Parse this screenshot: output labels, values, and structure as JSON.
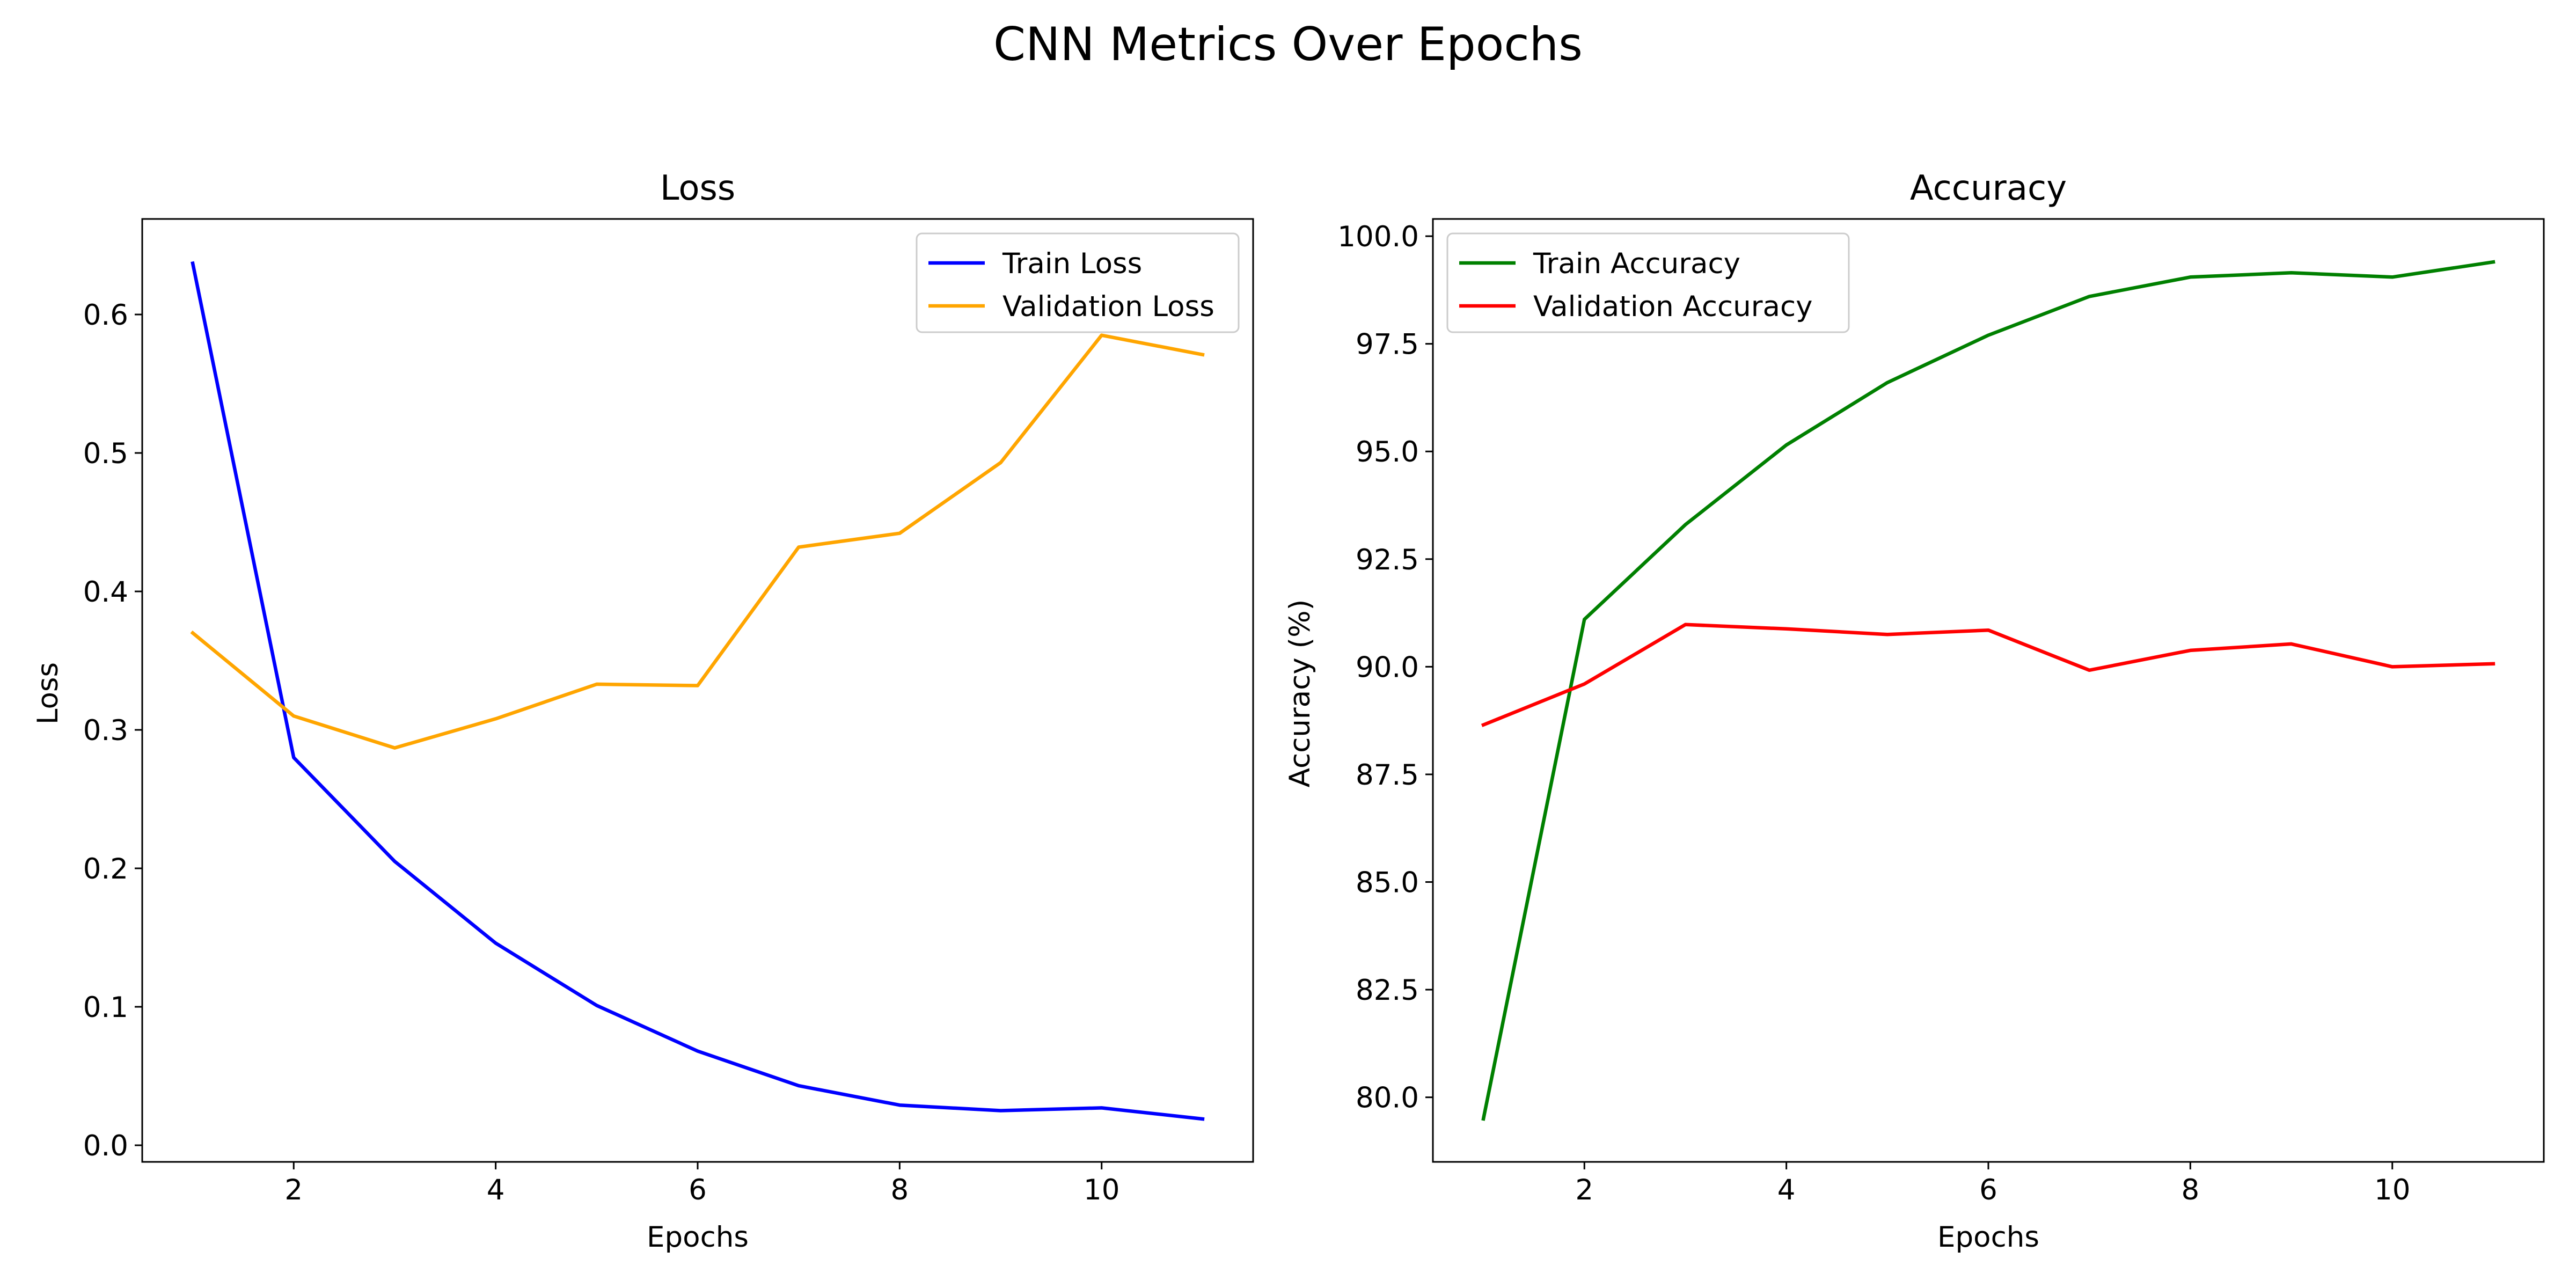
{
  "figure": {
    "title": "CNN Metrics Over Epochs"
  },
  "chart_data": [
    {
      "type": "line",
      "title": "Loss",
      "xlabel": "Epochs",
      "ylabel": "Loss",
      "x": [
        1,
        2,
        3,
        4,
        5,
        6,
        7,
        8,
        9,
        10,
        11
      ],
      "xlim": [
        0.5,
        11.5
      ],
      "ylim": [
        -0.012,
        0.669
      ],
      "xticks": [
        2,
        4,
        6,
        8,
        10
      ],
      "xtick_labels": [
        "2",
        "4",
        "6",
        "8",
        "10"
      ],
      "yticks": [
        0.0,
        0.1,
        0.2,
        0.3,
        0.4,
        0.5,
        0.6
      ],
      "ytick_labels": [
        "0.0",
        "0.1",
        "0.2",
        "0.3",
        "0.4",
        "0.5",
        "0.6"
      ],
      "grid": false,
      "legend": "upper right",
      "series": [
        {
          "name": "Train Loss",
          "color": "#0000ff",
          "values": [
            0.637,
            0.28,
            0.205,
            0.146,
            0.101,
            0.068,
            0.043,
            0.029,
            0.025,
            0.027,
            0.019
          ]
        },
        {
          "name": "Validation Loss",
          "color": "#ffa500",
          "values": [
            0.37,
            0.31,
            0.287,
            0.308,
            0.333,
            0.332,
            0.432,
            0.442,
            0.493,
            0.585,
            0.571
          ]
        }
      ]
    },
    {
      "type": "line",
      "title": "Accuracy",
      "xlabel": "Epochs",
      "ylabel": "Accuracy (%)",
      "x": [
        1,
        2,
        3,
        4,
        5,
        6,
        7,
        8,
        9,
        10,
        11
      ],
      "xlim": [
        0.5,
        11.5
      ],
      "ylim": [
        78.5,
        100.4
      ],
      "xticks": [
        2,
        4,
        6,
        8,
        10
      ],
      "xtick_labels": [
        "2",
        "4",
        "6",
        "8",
        "10"
      ],
      "yticks": [
        80.0,
        82.5,
        85.0,
        87.5,
        90.0,
        92.5,
        95.0,
        97.5,
        100.0
      ],
      "ytick_labels": [
        "80.0",
        "82.5",
        "85.0",
        "87.5",
        "90.0",
        "92.5",
        "95.0",
        "97.5",
        "100.0"
      ],
      "grid": false,
      "legend": "upper left",
      "series": [
        {
          "name": "Train Accuracy",
          "color": "#008000",
          "values": [
            79.5,
            91.1,
            93.3,
            95.15,
            96.6,
            97.7,
            98.6,
            99.05,
            99.15,
            99.05,
            99.4
          ]
        },
        {
          "name": "Validation Accuracy",
          "color": "#ff0000",
          "values": [
            88.65,
            89.6,
            90.98,
            90.88,
            90.75,
            90.85,
            89.92,
            90.38,
            90.53,
            90.0,
            90.07
          ]
        }
      ]
    }
  ]
}
